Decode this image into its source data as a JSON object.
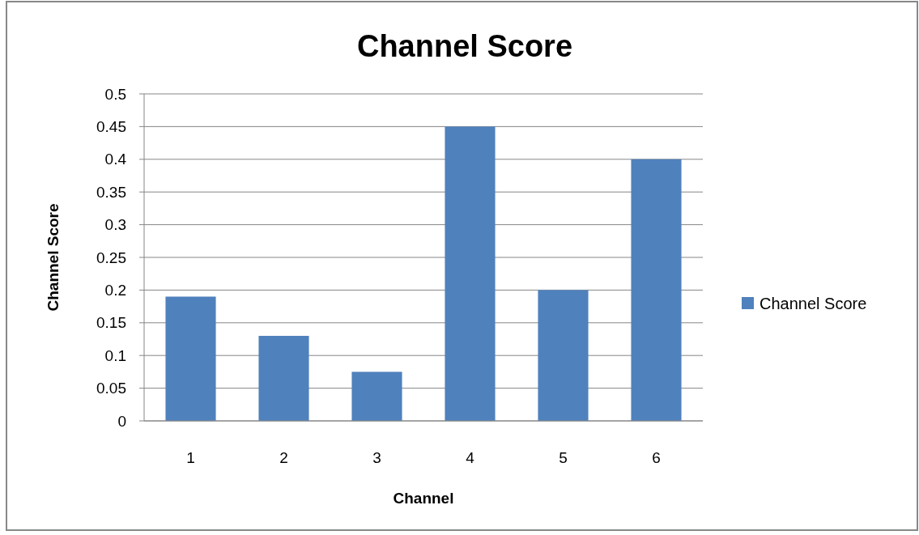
{
  "chart_data": {
    "type": "bar",
    "title": "Channel Score",
    "xlabel": "Channel",
    "ylabel": "Channel Score",
    "categories": [
      "1",
      "2",
      "3",
      "4",
      "5",
      "6"
    ],
    "series": [
      {
        "name": "Channel Score",
        "color": "#4f81bd",
        "values": [
          0.19,
          0.13,
          0.075,
          0.45,
          0.2,
          0.4
        ]
      }
    ],
    "ylim": [
      0,
      0.5
    ],
    "yticks": [
      0,
      0.05,
      0.1,
      0.15,
      0.2,
      0.25,
      0.3,
      0.35,
      0.4,
      0.45,
      0.5
    ],
    "grid": "y",
    "legend": "right"
  }
}
